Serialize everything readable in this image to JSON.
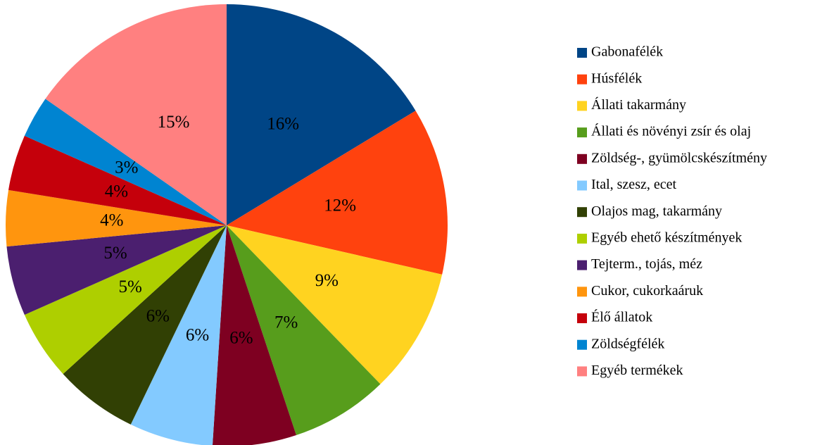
{
  "chart_data": {
    "type": "pie",
    "categories": [
      "Gabonafélék",
      "Húsfélék",
      "Állati takarmány",
      "Állati és növényi zsír és olaj",
      "Zöldség-, gyümölcskészítmény",
      "Ital, szesz, ecet",
      "Olajos mag, takarmány",
      "Egyéb ehető készítmények",
      "Tejterm., tojás, méz",
      "Cukor, cukorkaáruk",
      "Élő állatok",
      "Zöldségfélék",
      "Egyéb termékek"
    ],
    "values": [
      16,
      12,
      9,
      7,
      6,
      6,
      6,
      5,
      5,
      4,
      4,
      3,
      15
    ],
    "value_labels": [
      "16%",
      "12%",
      "9%",
      "7%",
      "6%",
      "6%",
      "6%",
      "5%",
      "5%",
      "4%",
      "4%",
      "3%",
      "15%"
    ],
    "colors": [
      "#004586",
      "#ff420e",
      "#ffd320",
      "#579d1c",
      "#7e0021",
      "#83caff",
      "#314004",
      "#aecf00",
      "#4b1f6f",
      "#ff950e",
      "#c5000b",
      "#0084d1",
      "#ff8080"
    ],
    "legend": "right"
  }
}
